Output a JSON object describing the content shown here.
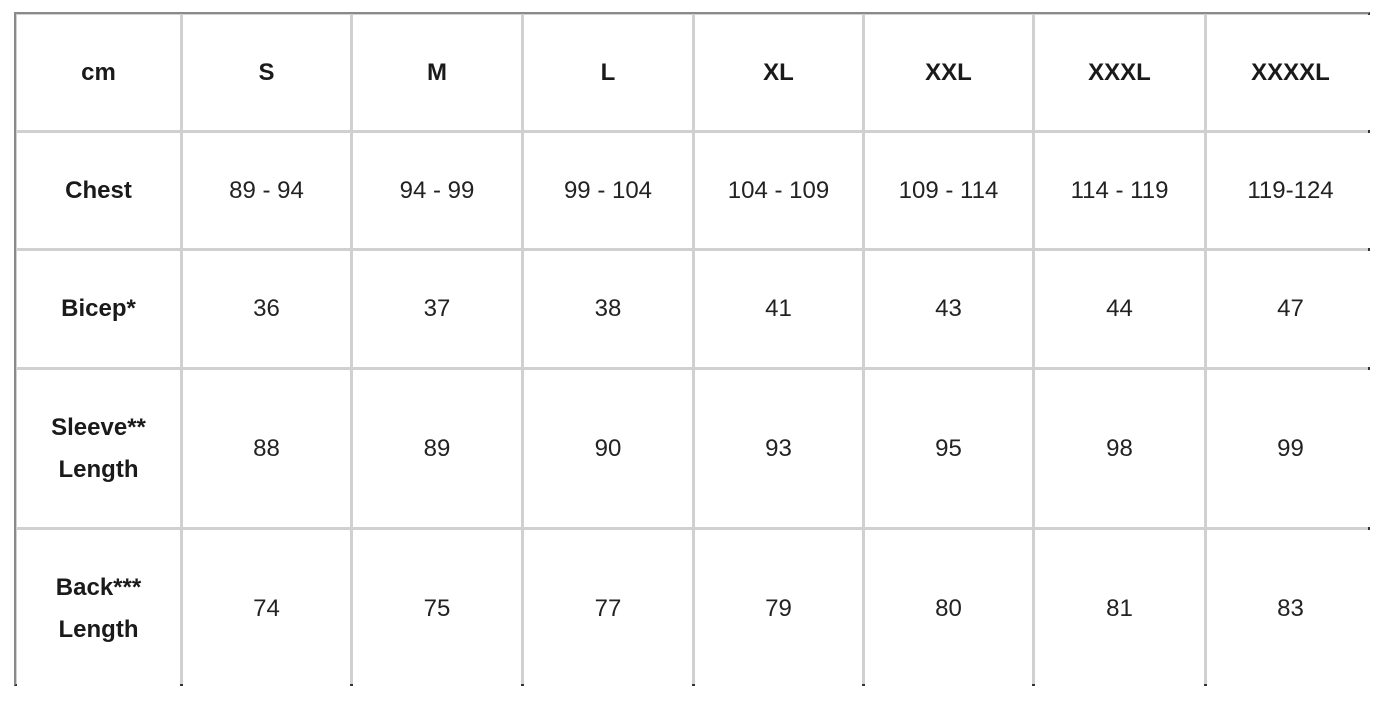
{
  "size_chart": {
    "corner": "cm",
    "sizes": [
      "S",
      "M",
      "L",
      "XL",
      "XXL",
      "XXXL",
      "XXXXL"
    ],
    "rows": [
      {
        "label_lines": [
          "Chest"
        ],
        "values": [
          "89 - 94",
          "94 - 99",
          "99 - 104",
          "104 - 109",
          "109 - 114",
          "114 - 119",
          "119-124"
        ]
      },
      {
        "label_lines": [
          "Bicep*"
        ],
        "values": [
          "36",
          "37",
          "38",
          "41",
          "43",
          "44",
          "47"
        ]
      },
      {
        "label_lines": [
          "Sleeve**",
          "Length"
        ],
        "values": [
          "88",
          "89",
          "90",
          "93",
          "95",
          "98",
          "99"
        ]
      },
      {
        "label_lines": [
          "Back***",
          "Length"
        ],
        "values": [
          "74",
          "75",
          "77",
          "79",
          "80",
          "81",
          "83"
        ]
      }
    ]
  }
}
